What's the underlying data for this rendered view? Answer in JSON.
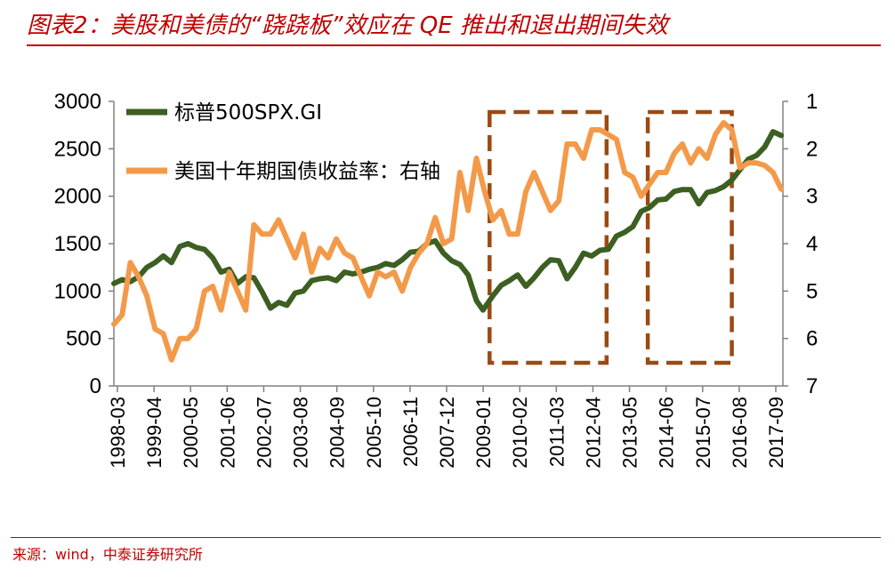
{
  "title": "图表2：美股和美债的“跷跷板”效应在 QE 推出和退出期间失效",
  "source": "来源：wind，中泰证券研究所",
  "colors": {
    "accent": "#c00000",
    "spx": "#3c5f22",
    "yield": "#f39a4a",
    "box": "#9b4a12"
  },
  "chart_data": {
    "type": "line",
    "title": "图表2：美股和美债的“跷跷板”效应在 QE 推出和退出期间失效",
    "x_tick_labels": [
      "1998-03",
      "1999-04",
      "2000-05",
      "2001-06",
      "2002-07",
      "2003-08",
      "2004-09",
      "2005-10",
      "2006-11",
      "2007-12",
      "2009-01",
      "2010-02",
      "2011-03",
      "2012-04",
      "2013-05",
      "2014-06",
      "2015-07",
      "2016-08",
      "2017-09"
    ],
    "x_range": [
      1998.0,
      2018.3
    ],
    "y_left": {
      "range": [
        0,
        3000
      ],
      "ticks": [
        "0",
        "500",
        "1000",
        "1500",
        "2000",
        "2500",
        "3000"
      ]
    },
    "y_right": {
      "range": [
        1,
        7
      ],
      "inverted": true,
      "ticks": [
        "1",
        "2",
        "3",
        "4",
        "5",
        "6",
        "7"
      ]
    },
    "grid": false,
    "legend_position": "top-left",
    "series": [
      {
        "name": "标普500SPX.GI",
        "axis": "left",
        "points": [
          [
            1998.0,
            1080
          ],
          [
            1998.25,
            1120
          ],
          [
            1998.5,
            1100
          ],
          [
            1998.75,
            1150
          ],
          [
            1999.0,
            1250
          ],
          [
            1999.25,
            1300
          ],
          [
            1999.5,
            1370
          ],
          [
            1999.75,
            1300
          ],
          [
            2000.0,
            1470
          ],
          [
            2000.25,
            1500
          ],
          [
            2000.5,
            1460
          ],
          [
            2000.75,
            1440
          ],
          [
            2001.0,
            1350
          ],
          [
            2001.25,
            1200
          ],
          [
            2001.5,
            1230
          ],
          [
            2001.75,
            1080
          ],
          [
            2002.0,
            1150
          ],
          [
            2002.25,
            1140
          ],
          [
            2002.5,
            990
          ],
          [
            2002.75,
            820
          ],
          [
            2003.0,
            880
          ],
          [
            2003.25,
            850
          ],
          [
            2003.5,
            980
          ],
          [
            2003.75,
            1000
          ],
          [
            2004.0,
            1110
          ],
          [
            2004.25,
            1130
          ],
          [
            2004.5,
            1140
          ],
          [
            2004.75,
            1110
          ],
          [
            2005.0,
            1200
          ],
          [
            2005.25,
            1180
          ],
          [
            2005.5,
            1200
          ],
          [
            2005.75,
            1230
          ],
          [
            2006.0,
            1250
          ],
          [
            2006.25,
            1290
          ],
          [
            2006.5,
            1270
          ],
          [
            2006.75,
            1330
          ],
          [
            2007.0,
            1410
          ],
          [
            2007.25,
            1420
          ],
          [
            2007.5,
            1500
          ],
          [
            2007.75,
            1530
          ],
          [
            2008.0,
            1400
          ],
          [
            2008.25,
            1320
          ],
          [
            2008.5,
            1280
          ],
          [
            2008.75,
            1170
          ],
          [
            2009.0,
            900
          ],
          [
            2009.2,
            800
          ],
          [
            2009.5,
            950
          ],
          [
            2009.75,
            1060
          ],
          [
            2010.0,
            1110
          ],
          [
            2010.25,
            1170
          ],
          [
            2010.5,
            1050
          ],
          [
            2010.75,
            1140
          ],
          [
            2011.0,
            1250
          ],
          [
            2011.25,
            1330
          ],
          [
            2011.5,
            1320
          ],
          [
            2011.75,
            1130
          ],
          [
            2012.0,
            1250
          ],
          [
            2012.25,
            1400
          ],
          [
            2012.5,
            1370
          ],
          [
            2012.75,
            1430
          ],
          [
            2013.0,
            1440
          ],
          [
            2013.25,
            1580
          ],
          [
            2013.5,
            1620
          ],
          [
            2013.75,
            1680
          ],
          [
            2014.0,
            1840
          ],
          [
            2014.25,
            1880
          ],
          [
            2014.5,
            1960
          ],
          [
            2014.75,
            1970
          ],
          [
            2015.0,
            2050
          ],
          [
            2015.25,
            2070
          ],
          [
            2015.5,
            2070
          ],
          [
            2015.75,
            1920
          ],
          [
            2016.0,
            2040
          ],
          [
            2016.25,
            2060
          ],
          [
            2016.5,
            2100
          ],
          [
            2016.75,
            2170
          ],
          [
            2017.0,
            2280
          ],
          [
            2017.25,
            2390
          ],
          [
            2017.5,
            2430
          ],
          [
            2017.75,
            2520
          ],
          [
            2018.0,
            2680
          ],
          [
            2018.25,
            2640
          ]
        ]
      },
      {
        "name": "美国十年期国债收益率：右轴",
        "axis": "right",
        "points": [
          [
            1998.0,
            5.7
          ],
          [
            1998.25,
            5.5
          ],
          [
            1998.5,
            4.4
          ],
          [
            1998.75,
            4.7
          ],
          [
            1999.0,
            5.1
          ],
          [
            1999.25,
            5.8
          ],
          [
            1999.5,
            5.9
          ],
          [
            1999.75,
            6.45
          ],
          [
            2000.0,
            6.0
          ],
          [
            2000.25,
            6.0
          ],
          [
            2000.5,
            5.8
          ],
          [
            2000.75,
            5.0
          ],
          [
            2001.0,
            4.9
          ],
          [
            2001.25,
            5.4
          ],
          [
            2001.5,
            4.6
          ],
          [
            2001.75,
            5.0
          ],
          [
            2002.0,
            5.4
          ],
          [
            2002.25,
            3.6
          ],
          [
            2002.5,
            3.8
          ],
          [
            2002.75,
            3.8
          ],
          [
            2003.0,
            3.5
          ],
          [
            2003.25,
            3.9
          ],
          [
            2003.5,
            4.3
          ],
          [
            2003.75,
            3.8
          ],
          [
            2004.0,
            4.6
          ],
          [
            2004.25,
            4.1
          ],
          [
            2004.5,
            4.3
          ],
          [
            2004.75,
            3.9
          ],
          [
            2005.0,
            4.2
          ],
          [
            2005.25,
            4.3
          ],
          [
            2005.5,
            4.7
          ],
          [
            2005.75,
            5.1
          ],
          [
            2006.0,
            4.6
          ],
          [
            2006.25,
            4.7
          ],
          [
            2006.5,
            4.6
          ],
          [
            2006.75,
            5.0
          ],
          [
            2007.0,
            4.5
          ],
          [
            2007.25,
            4.2
          ],
          [
            2007.5,
            4.0
          ],
          [
            2007.75,
            3.45
          ],
          [
            2008.0,
            4.0
          ],
          [
            2008.25,
            3.9
          ],
          [
            2008.5,
            2.5
          ],
          [
            2008.75,
            3.3
          ],
          [
            2009.0,
            2.2
          ],
          [
            2009.25,
            2.9
          ],
          [
            2009.5,
            3.5
          ],
          [
            2009.75,
            3.3
          ],
          [
            2010.0,
            3.8
          ],
          [
            2010.25,
            3.8
          ],
          [
            2010.5,
            2.9
          ],
          [
            2010.75,
            2.5
          ],
          [
            2011.0,
            2.9
          ],
          [
            2011.25,
            3.3
          ],
          [
            2011.5,
            3.1
          ],
          [
            2011.75,
            1.9
          ],
          [
            2012.0,
            1.9
          ],
          [
            2012.25,
            2.2
          ],
          [
            2012.5,
            1.6
          ],
          [
            2012.75,
            1.6
          ],
          [
            2013.0,
            1.7
          ],
          [
            2013.25,
            1.8
          ],
          [
            2013.5,
            2.5
          ],
          [
            2013.75,
            2.6
          ],
          [
            2014.0,
            3.0
          ],
          [
            2014.25,
            2.75
          ],
          [
            2014.5,
            2.5
          ],
          [
            2014.75,
            2.5
          ],
          [
            2015.0,
            2.1
          ],
          [
            2015.25,
            1.9
          ],
          [
            2015.5,
            2.3
          ],
          [
            2015.75,
            2.0
          ],
          [
            2016.0,
            2.2
          ],
          [
            2016.25,
            1.7
          ],
          [
            2016.5,
            1.45
          ],
          [
            2016.75,
            1.6
          ],
          [
            2017.0,
            2.4
          ],
          [
            2017.25,
            2.3
          ],
          [
            2017.5,
            2.3
          ],
          [
            2017.75,
            2.35
          ],
          [
            2018.0,
            2.5
          ],
          [
            2018.25,
            2.85
          ]
        ]
      }
    ],
    "annotations": [
      {
        "type": "dashed-box",
        "x_range": [
          2009.4,
          2012.95
        ],
        "note": ""
      },
      {
        "type": "dashed-box",
        "x_range": [
          2014.2,
          2016.75
        ],
        "note": ""
      }
    ]
  }
}
